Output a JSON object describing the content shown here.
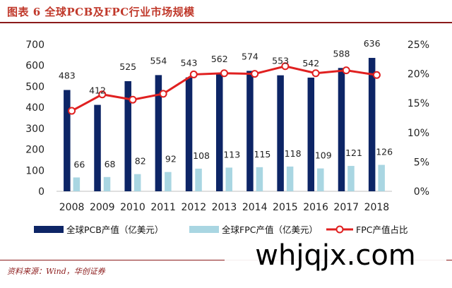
{
  "header": {
    "title": "图表 6  全球PCB及FPC行业市场规模"
  },
  "footer": {
    "source": "资料来源：Wind，华创证券"
  },
  "watermark": {
    "text": "whjqjx.com"
  },
  "colors": {
    "pcb": "#0d2566",
    "fpc": "#a9d6e2",
    "ratio": "#e02020",
    "title": "#c0392b",
    "rule": "#8b1a1a"
  },
  "chart_data": {
    "type": "bar",
    "categories": [
      "2008",
      "2009",
      "2010",
      "2011",
      "2012",
      "2013",
      "2014",
      "2015",
      "2016",
      "2017",
      "2018"
    ],
    "series": [
      {
        "name": "全球PCB产值（亿美元）",
        "type": "bar",
        "axis": "left",
        "values": [
          483,
          412,
          525,
          554,
          543,
          562,
          574,
          553,
          542,
          588,
          636
        ]
      },
      {
        "name": "全球FPC产值（亿美元）",
        "type": "bar",
        "axis": "left",
        "values": [
          66,
          68,
          82,
          92,
          108,
          113,
          115,
          118,
          109,
          121,
          126
        ]
      },
      {
        "name": "FPC产值占比",
        "type": "line",
        "axis": "right",
        "values": [
          13.7,
          16.5,
          15.6,
          16.6,
          19.9,
          20.1,
          20.0,
          21.3,
          20.1,
          20.6,
          19.8
        ]
      }
    ],
    "ylim": [
      0,
      700
    ],
    "y_ticks": [
      "0",
      "100",
      "200",
      "300",
      "400",
      "500",
      "600",
      "700"
    ],
    "y2lim": [
      0,
      25
    ],
    "y2_ticks": [
      "0%",
      "5%",
      "10%",
      "15%",
      "20%",
      "25%"
    ],
    "grid": false,
    "legend": "bottom"
  }
}
